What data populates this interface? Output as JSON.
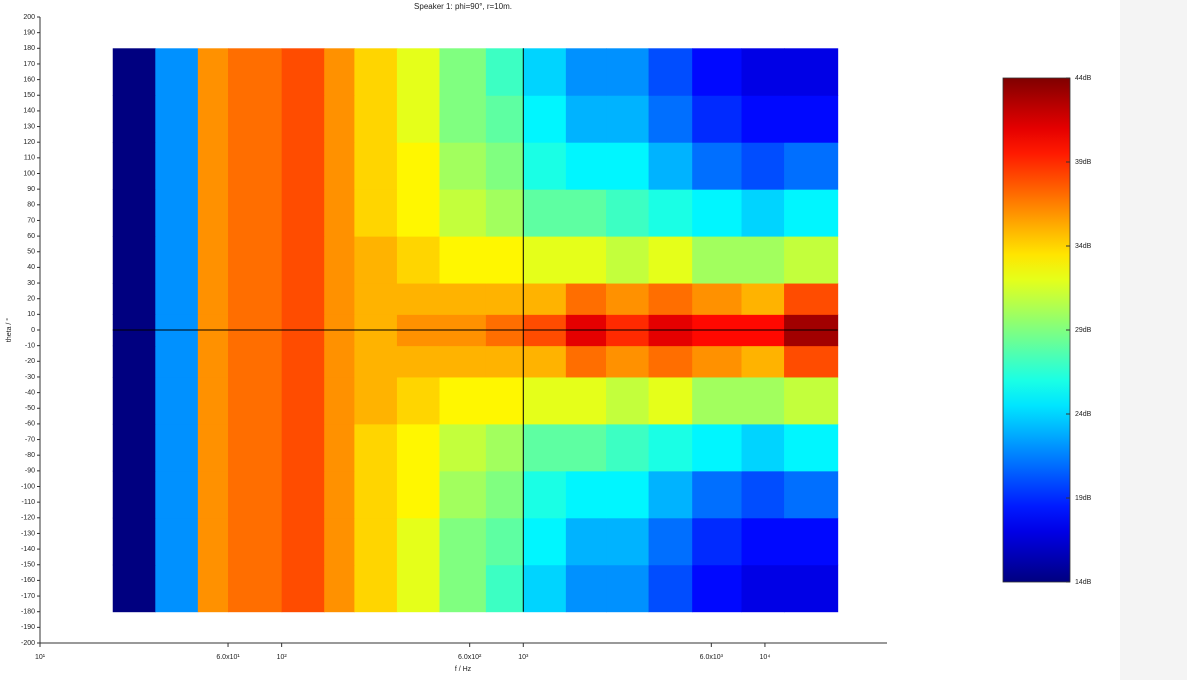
{
  "chart_data": {
    "type": "heatmap",
    "title": "Speaker 1: phi=90°, r=10m.",
    "xlabel": "f / Hz",
    "ylabel": "theta / °",
    "xscale": "log",
    "xlim": [
      10,
      32000
    ],
    "xticks": [
      {
        "value": 10,
        "label": "10¹"
      },
      {
        "value": 60,
        "label": "6.0x10¹"
      },
      {
        "value": 100,
        "label": "10²"
      },
      {
        "value": 600,
        "label": "6.0x10²"
      },
      {
        "value": 1000,
        "label": "10³"
      },
      {
        "value": 6000,
        "label": "6.0x10³"
      },
      {
        "value": 10000,
        "label": "10⁴"
      }
    ],
    "ylim": [
      -200,
      200
    ],
    "yticks": [
      -200,
      -190,
      -180,
      -170,
      -160,
      -150,
      -140,
      -130,
      -120,
      -110,
      -100,
      -90,
      -80,
      -70,
      -60,
      -50,
      -40,
      -30,
      -20,
      -10,
      0,
      10,
      20,
      30,
      40,
      50,
      60,
      70,
      80,
      90,
      100,
      110,
      120,
      130,
      140,
      150,
      160,
      170,
      180,
      190,
      200
    ],
    "crosshair": {
      "x": 1000,
      "y": 0
    },
    "xbins": [
      20,
      30,
      45,
      60,
      100,
      150,
      200,
      300,
      450,
      700,
      1000,
      1500,
      2200,
      3300,
      5000,
      8000,
      12000,
      20000
    ],
    "ybins": [
      -180,
      -150,
      -120,
      -90,
      -60,
      -30,
      -10,
      10,
      30,
      60,
      90,
      120,
      150,
      180
    ],
    "z": [
      [
        14,
        22,
        36,
        37,
        38,
        36,
        34,
        32,
        29,
        27,
        24,
        22,
        22,
        20,
        18,
        17,
        17
      ],
      [
        14,
        22,
        36,
        37,
        38,
        36,
        34,
        32,
        29,
        28,
        25,
        23,
        23,
        21,
        19,
        18,
        18
      ],
      [
        14,
        22,
        36,
        37,
        38,
        36,
        34,
        33,
        30,
        29,
        26,
        25,
        25,
        23,
        21,
        20,
        21
      ],
      [
        14,
        22,
        36,
        37,
        38,
        36,
        34,
        33,
        31,
        30,
        28,
        28,
        27,
        26,
        25,
        24,
        25
      ],
      [
        14,
        22,
        36,
        37,
        38,
        36,
        35,
        34,
        33,
        33,
        32,
        32,
        31,
        32,
        30,
        30,
        31
      ],
      [
        14,
        22,
        36,
        37,
        38,
        36,
        35,
        35,
        35,
        35,
        35,
        37,
        36,
        37,
        36,
        35,
        38
      ],
      [
        14,
        22,
        36,
        37,
        38,
        36,
        35,
        36,
        36,
        37,
        38,
        41,
        39,
        41,
        40,
        40,
        43
      ],
      [
        14,
        22,
        36,
        37,
        38,
        36,
        35,
        35,
        35,
        35,
        35,
        37,
        36,
        37,
        36,
        35,
        38
      ],
      [
        14,
        22,
        36,
        37,
        38,
        36,
        35,
        34,
        33,
        33,
        32,
        32,
        31,
        32,
        30,
        30,
        31
      ],
      [
        14,
        22,
        36,
        37,
        38,
        36,
        34,
        33,
        31,
        30,
        28,
        28,
        27,
        26,
        25,
        24,
        25
      ],
      [
        14,
        22,
        36,
        37,
        38,
        36,
        34,
        33,
        30,
        29,
        26,
        25,
        25,
        23,
        21,
        20,
        21
      ],
      [
        14,
        22,
        36,
        37,
        38,
        36,
        34,
        32,
        29,
        28,
        25,
        23,
        23,
        21,
        19,
        18,
        18
      ],
      [
        14,
        22,
        36,
        37,
        38,
        36,
        34,
        32,
        29,
        27,
        24,
        22,
        22,
        20,
        18,
        17,
        17
      ]
    ],
    "colormap": "jet",
    "zlim": [
      14,
      44
    ],
    "zticks": [
      {
        "value": 44,
        "label": "44dB"
      },
      {
        "value": 39,
        "label": "39dB"
      },
      {
        "value": 34,
        "label": "34dB"
      },
      {
        "value": 29,
        "label": "29dB"
      },
      {
        "value": 24,
        "label": "24dB"
      },
      {
        "value": 19,
        "label": "19dB"
      },
      {
        "value": 14,
        "label": "14dB"
      }
    ]
  }
}
